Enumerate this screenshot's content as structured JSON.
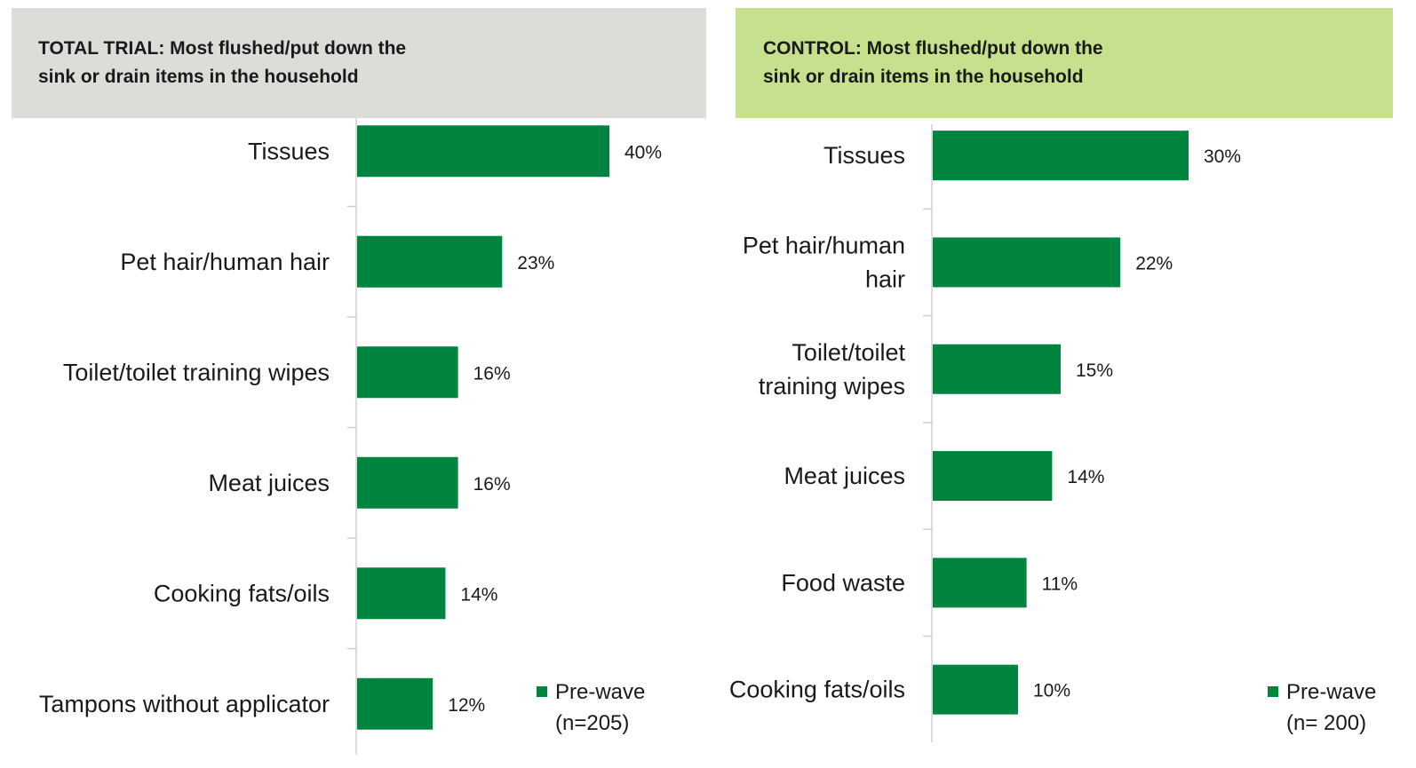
{
  "bar_color": "#00843f",
  "left_panel": {
    "title_line1": "TOTAL TRIAL: Most flushed/put down the",
    "title_line2": "sink or drain items in the household",
    "header_bg": "#dcdcd9",
    "legend_label": "Pre-wave",
    "legend_n": "(n=205)"
  },
  "right_panel": {
    "title_line1": "CONTROL: Most flushed/put down the",
    "title_line2": "sink or drain items in the household",
    "header_bg": "#c6e08d",
    "legend_label": "Pre-wave",
    "legend_n": "(n= 200)"
  },
  "chart_data": [
    {
      "type": "bar",
      "orientation": "horizontal",
      "title": "TOTAL TRIAL: Most flushed/put down the sink or drain items in the household",
      "categories": [
        [
          "Tissues"
        ],
        [
          "Pet hair/human hair"
        ],
        [
          "Toilet/toilet training wipes"
        ],
        [
          "Meat juices"
        ],
        [
          "Cooking fats/oils"
        ],
        [
          "Tampons without applicator"
        ]
      ],
      "series": [
        {
          "name": "Pre-wave (n=205)",
          "values": [
            40,
            23,
            16,
            16,
            14,
            12
          ]
        }
      ],
      "data_labels": [
        "40%",
        "23%",
        "16%",
        "16%",
        "14%",
        "12%"
      ],
      "unit": "%",
      "xlim": [
        0,
        50
      ],
      "grid": false,
      "legend_position": "bottom-right"
    },
    {
      "type": "bar",
      "orientation": "horizontal",
      "title": "CONTROL: Most flushed/put down the sink or drain items in the household",
      "categories": [
        [
          "Tissues"
        ],
        [
          "Pet hair/human",
          "hair"
        ],
        [
          "Toilet/toilet",
          "training wipes"
        ],
        [
          "Meat juices"
        ],
        [
          "Food waste"
        ],
        [
          "Cooking fats/oils"
        ]
      ],
      "series": [
        {
          "name": "Pre-wave (n= 200)",
          "values": [
            30,
            22,
            15,
            14,
            11,
            10
          ]
        }
      ],
      "data_labels": [
        "30%",
        "22%",
        "15%",
        "14%",
        "11%",
        "10%"
      ],
      "unit": "%",
      "xlim": [
        0,
        50
      ],
      "grid": false,
      "legend_position": "bottom-right"
    }
  ]
}
